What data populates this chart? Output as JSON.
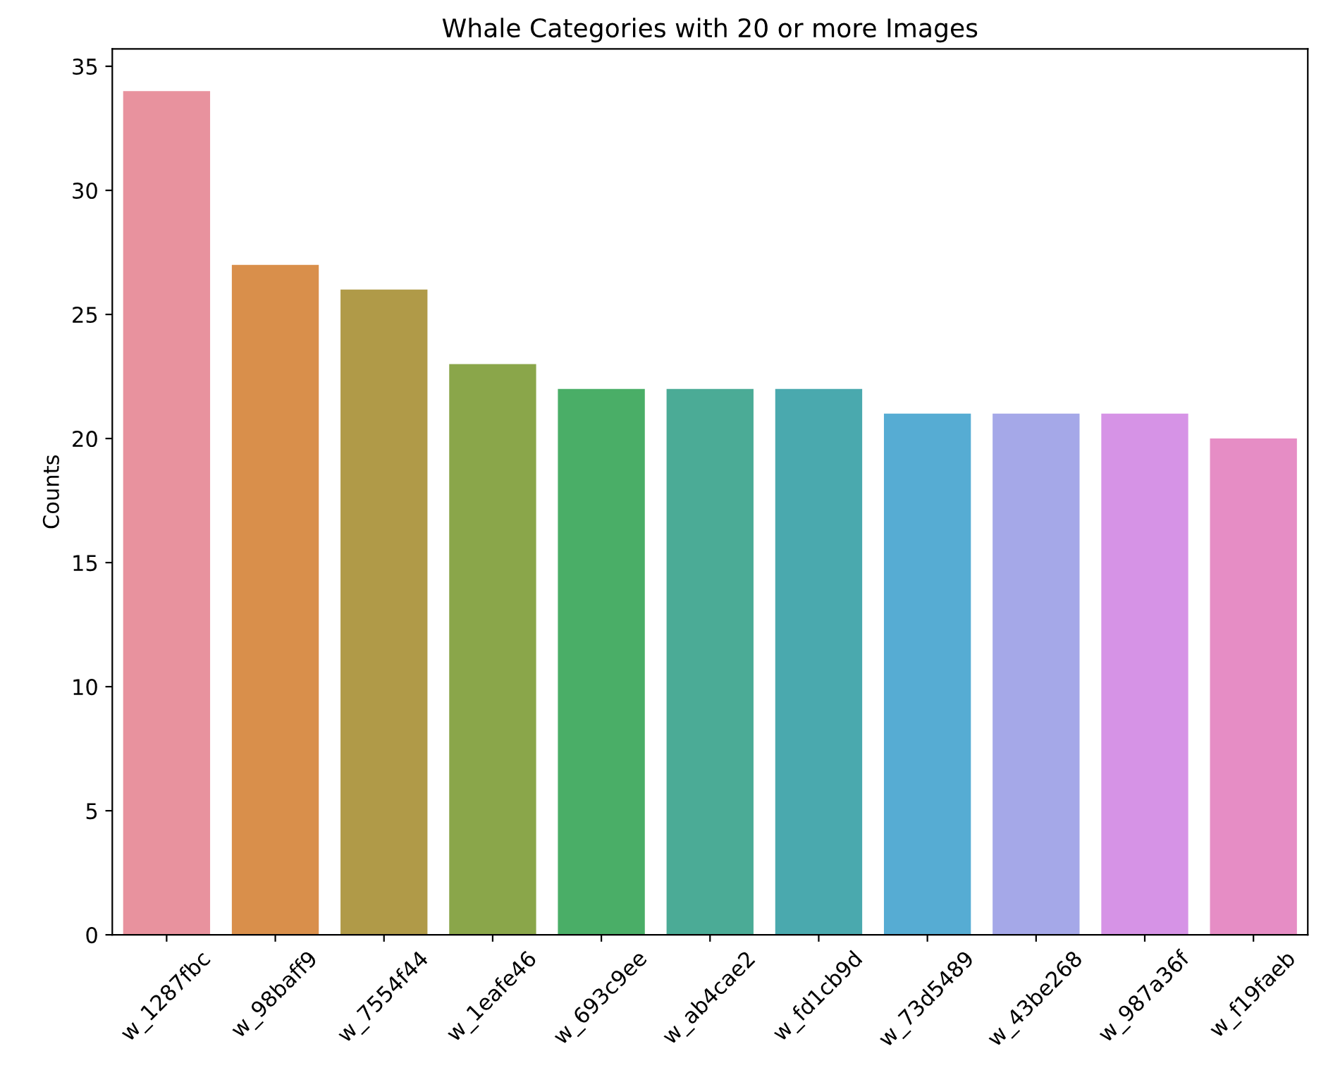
{
  "chart_data": {
    "type": "bar",
    "title": "Whale Categories with 20 or more Images",
    "ylabel": "Counts",
    "categories": [
      "w_1287fbc",
      "w_98baff9",
      "w_7554f44",
      "w_1eafe46",
      "w_693c9ee",
      "w_ab4cae2",
      "w_fd1cb9d",
      "w_73d5489",
      "w_43be268",
      "w_987a36f",
      "w_f19faeb"
    ],
    "values": [
      34,
      27,
      26,
      23,
      22,
      22,
      22,
      21,
      21,
      21,
      20
    ],
    "colors": [
      "#e8929e",
      "#d98f4b",
      "#b09a48",
      "#8aa64a",
      "#4aae67",
      "#4bab96",
      "#4aa9ae",
      "#56acd3",
      "#a5a8e8",
      "#d693e6",
      "#e68dc5"
    ],
    "ylim": [
      0,
      35.7
    ],
    "yticks": [
      0,
      5,
      10,
      15,
      20,
      25,
      30,
      35
    ],
    "grid": false,
    "legend": false
  }
}
